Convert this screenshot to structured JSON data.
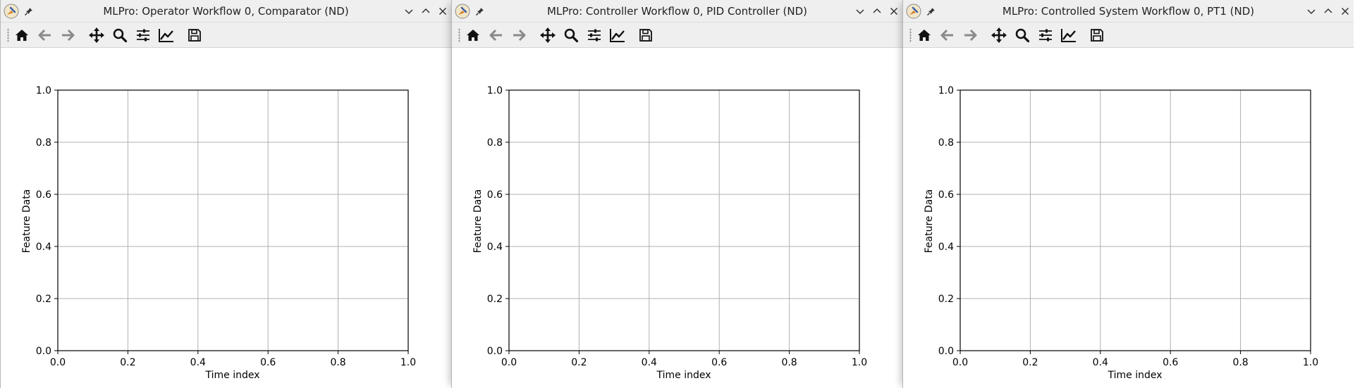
{
  "windows": [
    {
      "title": "MLPro: Operator Workflow 0, Comparator (ND)",
      "toolbar": [
        "home-icon",
        "back-arrow-icon",
        "forward-arrow-icon",
        "pan-icon",
        "zoom-icon",
        "configure-subplots-icon",
        "edit-curves-icon",
        "save-icon"
      ]
    },
    {
      "title": "MLPro: Controller Workflow 0, PID Controller (ND)",
      "toolbar": [
        "home-icon",
        "back-arrow-icon",
        "forward-arrow-icon",
        "pan-icon",
        "zoom-icon",
        "configure-subplots-icon",
        "edit-curves-icon",
        "save-icon"
      ]
    },
    {
      "title": "MLPro: Controlled System Workflow 0, PT1 (ND)",
      "toolbar": [
        "home-icon",
        "back-arrow-icon",
        "forward-arrow-icon",
        "pan-icon",
        "zoom-icon",
        "configure-subplots-icon",
        "edit-curves-icon",
        "save-icon"
      ]
    }
  ],
  "chart_data": [
    {
      "type": "line",
      "xlabel": "Time index",
      "ylabel": "Feature Data",
      "xlim": [
        0.0,
        1.0
      ],
      "ylim": [
        0.0,
        1.0
      ],
      "xticks": [
        "0.0",
        "0.2",
        "0.4",
        "0.6",
        "0.8",
        "1.0"
      ],
      "yticks": [
        "0.0",
        "0.2",
        "0.4",
        "0.6",
        "0.8",
        "1.0"
      ],
      "grid": true,
      "series": []
    },
    {
      "type": "line",
      "xlabel": "Time index",
      "ylabel": "Feature Data",
      "xlim": [
        0.0,
        1.0
      ],
      "ylim": [
        0.0,
        1.0
      ],
      "xticks": [
        "0.0",
        "0.2",
        "0.4",
        "0.6",
        "0.8",
        "1.0"
      ],
      "yticks": [
        "0.0",
        "0.2",
        "0.4",
        "0.6",
        "0.8",
        "1.0"
      ],
      "grid": true,
      "series": []
    },
    {
      "type": "line",
      "xlabel": "Time index",
      "ylabel": "Feature Data",
      "xlim": [
        0.0,
        1.0
      ],
      "ylim": [
        0.0,
        1.0
      ],
      "xticks": [
        "0.0",
        "0.2",
        "0.4",
        "0.6",
        "0.8",
        "1.0"
      ],
      "yticks": [
        "0.0",
        "0.2",
        "0.4",
        "0.6",
        "0.8",
        "1.0"
      ],
      "grid": true,
      "series": []
    }
  ]
}
